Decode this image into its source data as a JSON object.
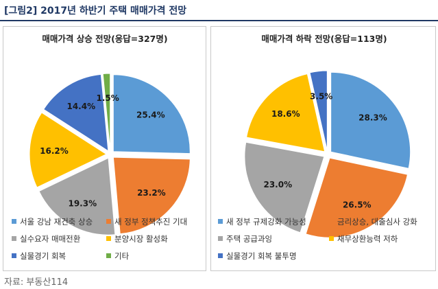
{
  "figure_title": "[그림2] 2017년 하반기 주택 매매가격 전망",
  "source": "자료: 부동산114",
  "chart_data": [
    {
      "type": "pie",
      "title": "매매가격 상승 전망(응답=327명)",
      "slices": [
        {
          "name": "서울 강남 재건축 상승",
          "value": 25.4,
          "label": "25.4%",
          "color": "#5b9bd5"
        },
        {
          "name": "새 정부 정책추진 기대",
          "value": 23.2,
          "label": "23.2%",
          "color": "#ed7d31"
        },
        {
          "name": "실수요자 매매전환",
          "value": 19.3,
          "label": "19.3%",
          "color": "#a5a5a5"
        },
        {
          "name": "분양시장 활성화",
          "value": 16.2,
          "label": "16.2%",
          "color": "#ffc000"
        },
        {
          "name": "실물경기 회복",
          "value": 14.4,
          "label": "14.4%",
          "color": "#4472c4"
        },
        {
          "name": "기타",
          "value": 1.5,
          "label": "1.5%",
          "color": "#70ad47"
        }
      ],
      "legend": "bottom"
    },
    {
      "type": "pie",
      "title": "매매가격 하락 전망(응답=113명)",
      "slices": [
        {
          "name": "새 정부 규제강화 가능성",
          "value": 28.3,
          "label": "28.3%",
          "color": "#5b9bd5"
        },
        {
          "name": "금리상승, 대출심사 강화",
          "value": 26.5,
          "label": "26.5%",
          "color": "#ed7d31"
        },
        {
          "name": "주택 공급과잉",
          "value": 23.0,
          "label": "23.0%",
          "color": "#a5a5a5"
        },
        {
          "name": "채무상환능력 저하",
          "value": 18.6,
          "label": "18.6%",
          "color": "#ffc000"
        },
        {
          "name": "실물경기 회복 불투명",
          "value": 3.5,
          "label": "3.5%",
          "color": "#4472c4"
        }
      ],
      "legend": "bottom"
    }
  ]
}
